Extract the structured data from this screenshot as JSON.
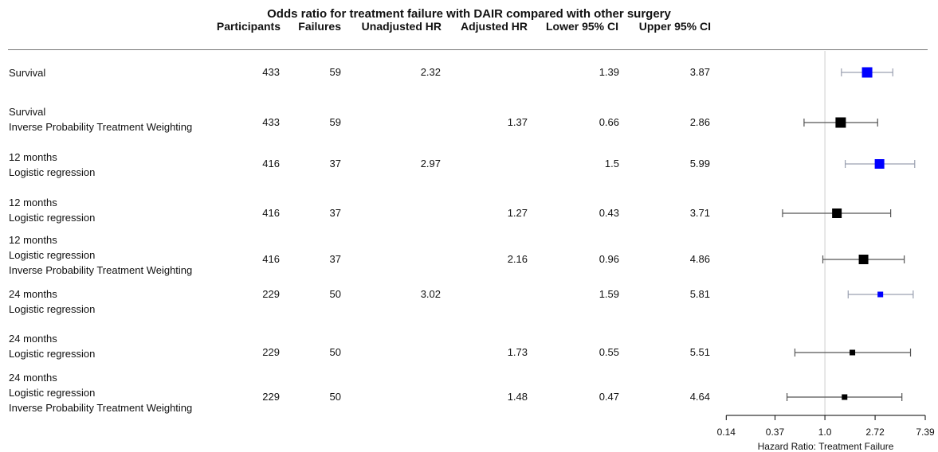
{
  "chart_data": {
    "type": "forest",
    "title": "Odds ratio for treatment failure with DAIR compared with other surgery",
    "columns": [
      "Participants",
      "Failures",
      "Unadjusted HR",
      "Adjusted HR",
      "Lower 95% CI",
      "Upper 95% CI"
    ],
    "rows": [
      {
        "label": [
          "Survival"
        ],
        "participants": "433",
        "failures": "59",
        "unadjusted": "2.32",
        "adjusted": "",
        "lower": "1.39",
        "upper": "3.87",
        "hr": 2.32,
        "lo": 1.39,
        "hi": 3.87,
        "color": "#0000ff",
        "size": 13
      },
      {
        "label": [
          "Survival",
          "Inverse Probability Treatment Weighting"
        ],
        "participants": "433",
        "failures": "59",
        "unadjusted": "",
        "adjusted": "1.37",
        "lower": "0.66",
        "upper": "2.86",
        "hr": 1.37,
        "lo": 0.66,
        "hi": 2.86,
        "color": "#000000",
        "size": 13
      },
      {
        "label": [
          "12 months",
          "Logistic regression"
        ],
        "participants": "416",
        "failures": "37",
        "unadjusted": "2.97",
        "adjusted": "",
        "lower": "1.5",
        "upper": "5.99",
        "hr": 2.97,
        "lo": 1.5,
        "hi": 5.99,
        "color": "#0000ff",
        "size": 12
      },
      {
        "label": [
          "12 months",
          "Logistic regression"
        ],
        "participants": "416",
        "failures": "37",
        "unadjusted": "",
        "adjusted": "1.27",
        "lower": "0.43",
        "upper": "3.71",
        "hr": 1.27,
        "lo": 0.43,
        "hi": 3.71,
        "color": "#000000",
        "size": 12
      },
      {
        "label": [
          "12 months",
          "Logistic regression",
          "Inverse Probability Treatment Weighting"
        ],
        "participants": "416",
        "failures": "37",
        "unadjusted": "",
        "adjusted": "2.16",
        "lower": "0.96",
        "upper": "4.86",
        "hr": 2.16,
        "lo": 0.96,
        "hi": 4.86,
        "color": "#000000",
        "size": 12
      },
      {
        "label": [
          "24 months",
          "Logistic regression"
        ],
        "participants": "229",
        "failures": "50",
        "unadjusted": "3.02",
        "adjusted": "",
        "lower": "1.59",
        "upper": "5.81",
        "hr": 3.02,
        "lo": 1.59,
        "hi": 5.81,
        "color": "#0000ff",
        "size": 7
      },
      {
        "label": [
          "24 months",
          "Logistic regression"
        ],
        "participants": "229",
        "failures": "50",
        "unadjusted": "",
        "adjusted": "1.73",
        "lower": "0.55",
        "upper": "5.51",
        "hr": 1.73,
        "lo": 0.55,
        "hi": 5.51,
        "color": "#000000",
        "size": 7
      },
      {
        "label": [
          "24 months",
          "Logistic regression",
          "Inverse Probability Treatment Weighting"
        ],
        "participants": "229",
        "failures": "50",
        "unadjusted": "",
        "adjusted": "1.48",
        "lower": "0.47",
        "upper": "4.64",
        "hr": 1.48,
        "lo": 0.47,
        "hi": 4.64,
        "color": "#000000",
        "size": 7
      }
    ],
    "x_axis": {
      "scale": "log",
      "ticks": [
        0.14,
        0.37,
        1.0,
        2.72,
        7.39
      ],
      "tick_labels": [
        "0.14",
        "0.37",
        "1.0",
        "2.72",
        "7.39"
      ],
      "label": "Hazard Ratio: Treatment Failure",
      "reference_line": 1.0
    }
  }
}
